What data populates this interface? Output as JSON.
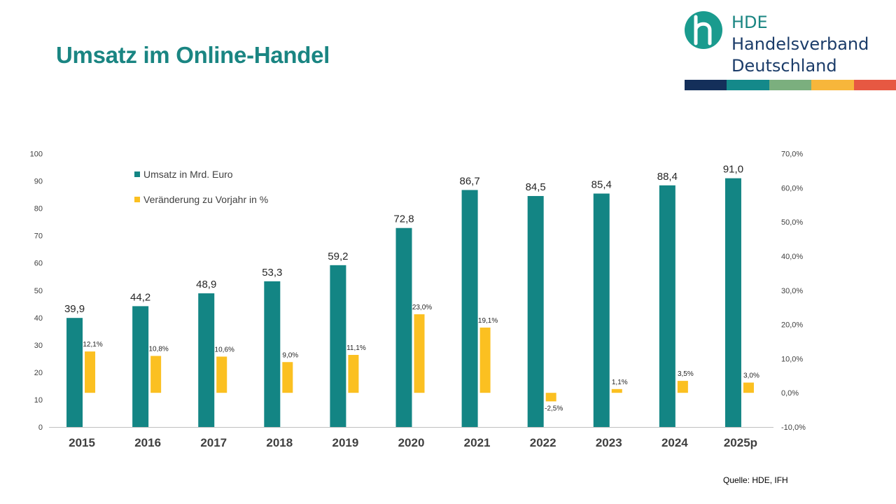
{
  "title": "Umsatz im Online-Handel",
  "logo": {
    "icon": "hde-h-logo-icon",
    "abbr": "HDE",
    "line1": "Handelsverband",
    "line2": "Deutschland",
    "stripe_colors": [
      "#142f5a",
      "#14898a",
      "#7baf7e",
      "#f7b63b",
      "#e75842"
    ]
  },
  "source": "Quelle: HDE, IFH",
  "colors": {
    "umsatz": "#138584",
    "veraenderung": "#fbc021",
    "axis": "#bfbfbf"
  },
  "chart_data": {
    "type": "bar",
    "categories": [
      "2015",
      "2016",
      "2017",
      "2018",
      "2019",
      "2020",
      "2021",
      "2022",
      "2023",
      "2024",
      "2025p"
    ],
    "series": [
      {
        "name": "Umsatz in Mrd. Euro",
        "axis": "left",
        "values": [
          39.9,
          44.2,
          48.9,
          53.3,
          59.2,
          72.8,
          86.7,
          84.5,
          85.4,
          88.4,
          91.0
        ],
        "labels": [
          "39,9",
          "44,2",
          "48,9",
          "53,3",
          "59,2",
          "72,8",
          "86,7",
          "84,5",
          "85,4",
          "88,4",
          "91,0"
        ]
      },
      {
        "name": "Veränderung zu Vorjahr in %",
        "axis": "right",
        "values": [
          12.1,
          10.8,
          10.6,
          9.0,
          11.1,
          23.0,
          19.1,
          -2.5,
          1.1,
          3.5,
          3.0
        ],
        "labels": [
          "12,1%",
          "10,8%",
          "10,6%",
          "9,0%",
          "11,1%",
          "23,0%",
          "19,1%",
          "-2,5%",
          "1,1%",
          "3,5%",
          "3,0%"
        ]
      }
    ],
    "y_left": {
      "min": 0,
      "max": 100,
      "step": 10,
      "ticks": [
        "0",
        "10",
        "20",
        "30",
        "40",
        "50",
        "60",
        "70",
        "80",
        "90",
        "100"
      ]
    },
    "y_right": {
      "min": -10,
      "max": 70,
      "step": 10,
      "ticks": [
        "-10,0%",
        "0,0%",
        "10,0%",
        "20,0%",
        "30,0%",
        "40,0%",
        "50,0%",
        "60,0%",
        "70,0%"
      ]
    },
    "grid": false,
    "legend_position": "top-left"
  }
}
